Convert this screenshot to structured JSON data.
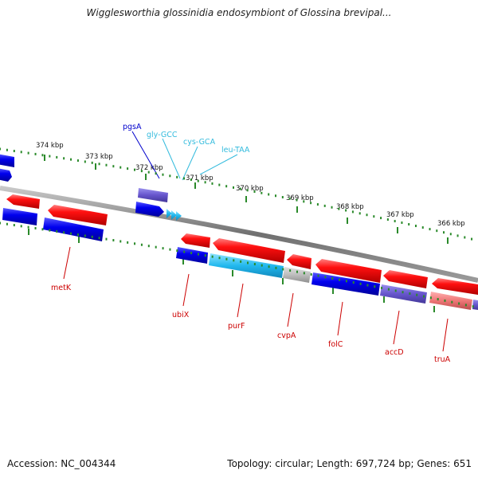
{
  "title": "Wigglesworthia glossinidia endosymbiont of Glossina brevipal...",
  "footer": {
    "accession": "Accession: NC_004344",
    "summary": "Topology: circular; Length: 697,724 bp; Genes: 651"
  },
  "ruler_ticks": [
    "374 kbp",
    "373 kbp",
    "372 kbp",
    "371 kbp",
    "370 kbp",
    "369 kbp",
    "368 kbp",
    "367 kbp",
    "366 kbp"
  ],
  "genes": [
    {
      "name": "pgsA",
      "label_color": "#0000cc"
    },
    {
      "name": "gly-GCC",
      "label_color": "#33bbdd"
    },
    {
      "name": "cys-GCA",
      "label_color": "#33bbdd"
    },
    {
      "name": "leu-TAA",
      "label_color": "#33bbdd"
    },
    {
      "name": "metK",
      "label_color": "#cc0000"
    },
    {
      "name": "ubiX",
      "label_color": "#cc0000"
    },
    {
      "name": "purF",
      "label_color": "#cc0000"
    },
    {
      "name": "cvpA",
      "label_color": "#cc0000"
    },
    {
      "name": "folC",
      "label_color": "#cc0000"
    },
    {
      "name": "accD",
      "label_color": "#cc0000"
    },
    {
      "name": "truA",
      "label_color": "#cc0000"
    }
  ],
  "colors": {
    "backbone": "#808080",
    "tick": "#2a8a2a",
    "cds_red": "#ee0000",
    "cds_blue": "#0000dd",
    "cds_purple": "#6655cc",
    "trna": "#33bbee",
    "gray": "#bbbbbb",
    "pink": "#ee7777"
  }
}
